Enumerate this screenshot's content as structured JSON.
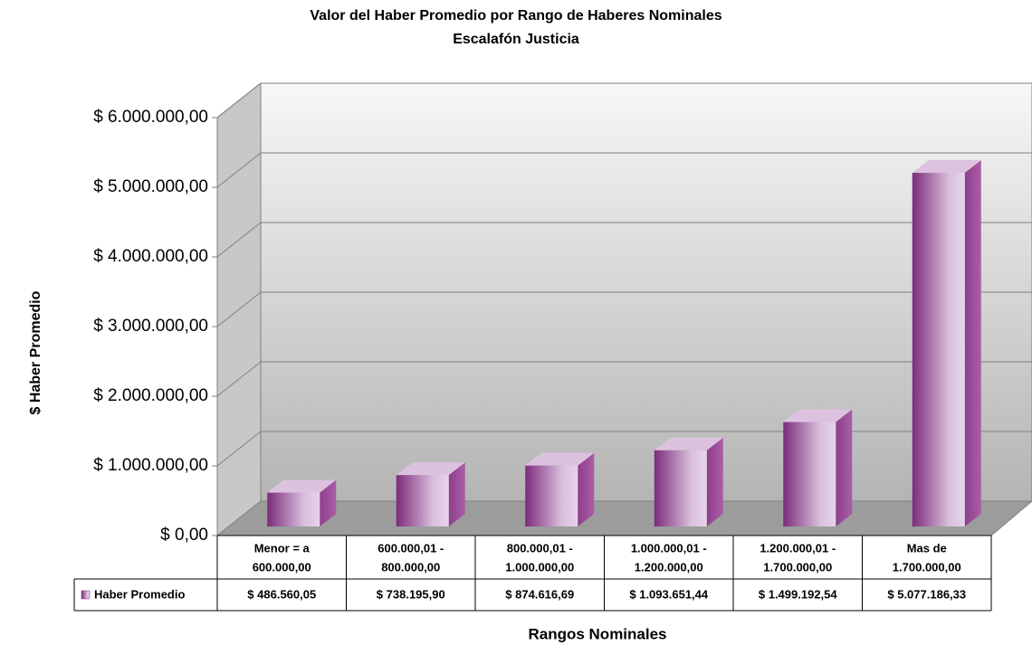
{
  "chart_data": {
    "type": "bar",
    "title": "Valor del Haber Promedio por Rango de Haberes Nominales",
    "subtitle": "Escalafón Justicia",
    "y_label": "$ Haber Promedio",
    "x_label": "Rangos Nominales",
    "categories": [
      [
        "Menor = a",
        "600.000,00"
      ],
      [
        "600.000,01 -",
        "800.000,00"
      ],
      [
        "800.000,01 -",
        "1.000.000,00"
      ],
      [
        "1.000.000,01 -",
        "1.200.000,00"
      ],
      [
        "1.200.000,01 -",
        "1.700.000,00"
      ],
      [
        "Mas de",
        "1.700.000,00"
      ]
    ],
    "series": [
      {
        "name": "Haber Promedio",
        "color": "#9a4a98",
        "values": [
          486560.05,
          738195.9,
          874616.69,
          1093651.44,
          1499192.54,
          5077186.33
        ],
        "value_labels": [
          "$ 486.560,05",
          "$ 738.195,90",
          "$ 874.616,69",
          "$ 1.093.651,44",
          "$ 1.499.192,54",
          "$ 5.077.186,33"
        ]
      }
    ],
    "ylim": [
      0,
      6000000
    ],
    "yticks": [
      {
        "value": 0,
        "label": "$ 0,00"
      },
      {
        "value": 1000000,
        "label": "$ 1.000.000,00"
      },
      {
        "value": 2000000,
        "label": "$ 2.000.000,00"
      },
      {
        "value": 3000000,
        "label": "$ 3.000.000,00"
      },
      {
        "value": 4000000,
        "label": "$ 4.000.000,00"
      },
      {
        "value": 5000000,
        "label": "$ 5.000.000,00"
      },
      {
        "value": 6000000,
        "label": "$ 6.000.000,00"
      }
    ],
    "grid": true
  }
}
